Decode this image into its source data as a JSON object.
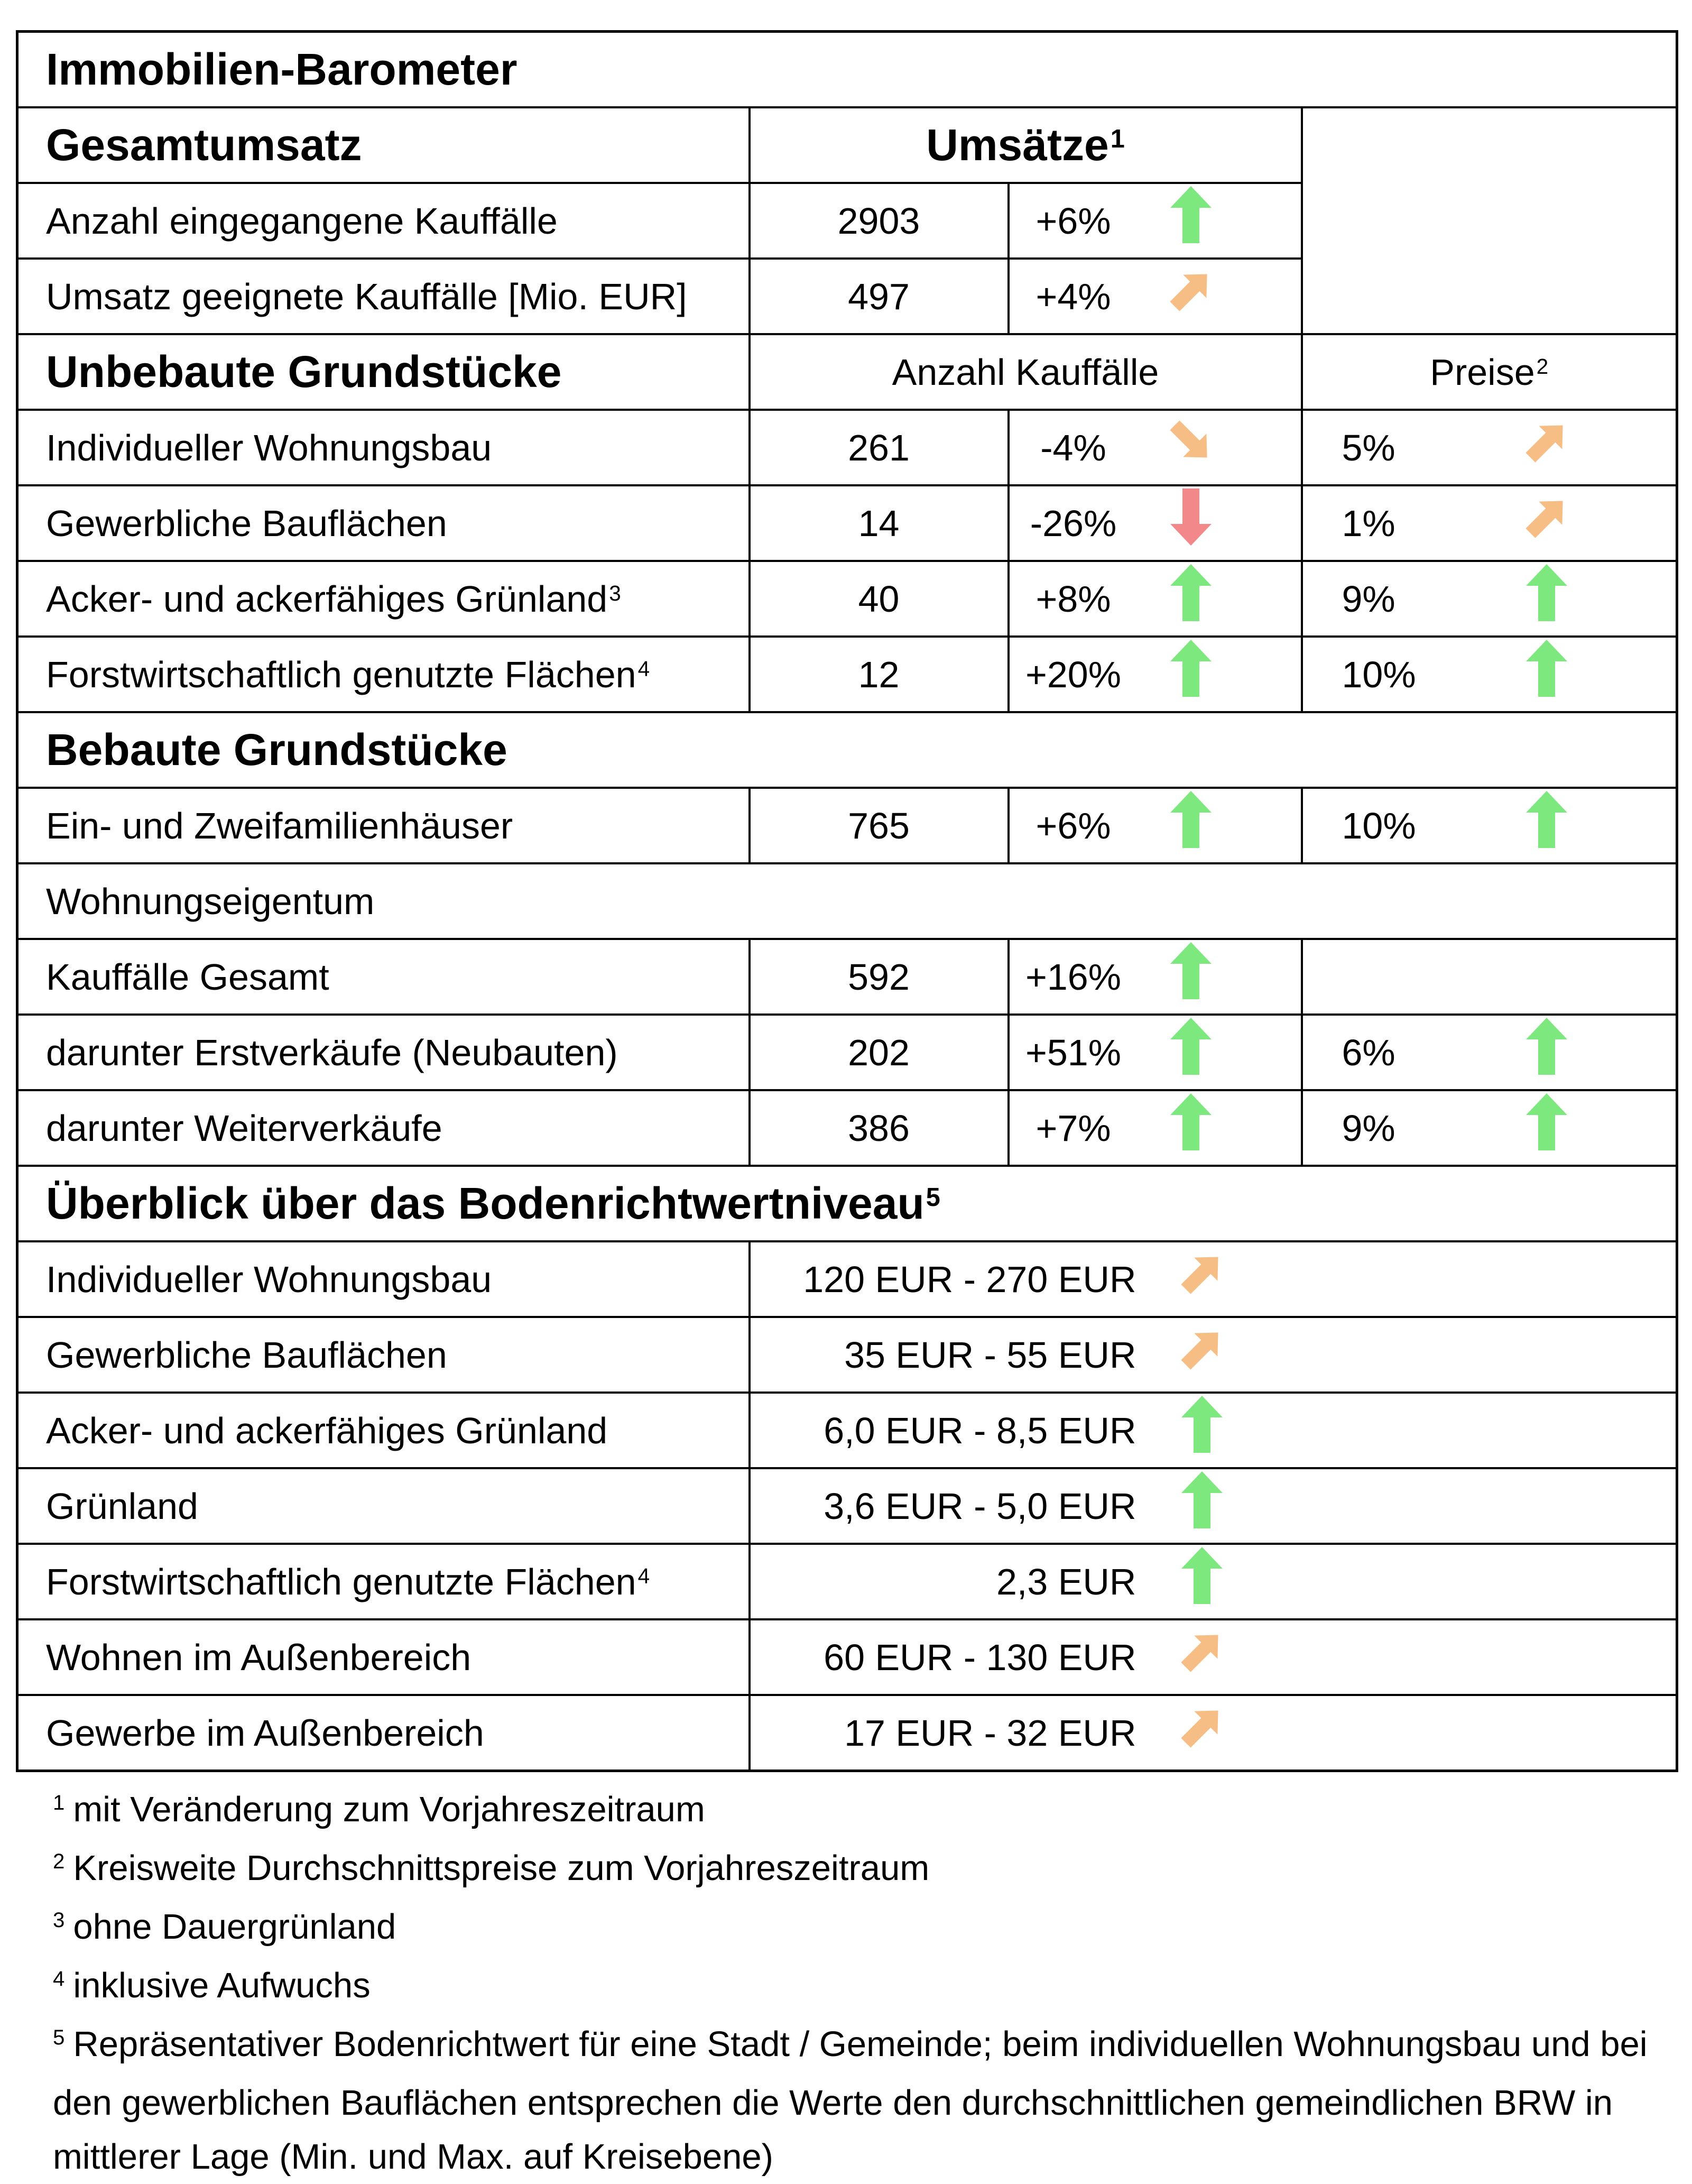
{
  "palette": {
    "green": "#7de87d",
    "orange": "#f6bd85",
    "red": "#f3888a",
    "border": "#000000",
    "background": "#ffffff"
  },
  "table": {
    "rows": [
      {
        "kind": "title",
        "label": "Immobilien-Barometer"
      },
      {
        "kind": "colheader2",
        "label": "Gesamtumsatz",
        "header": "Umsätze",
        "header_sup": "1"
      },
      {
        "kind": "data",
        "label": "Anzahl eingegangene Kauffälle",
        "num": "2903",
        "pct": "+6%",
        "trend": {
          "dir": "up",
          "color": "green"
        },
        "omit_price": true
      },
      {
        "kind": "data",
        "label": "Umsatz geeignete Kauffälle [Mio. EUR]",
        "num": "497",
        "pct": "+4%",
        "trend": {
          "dir": "ne",
          "color": "orange"
        },
        "omit_price": true
      },
      {
        "kind": "colheader5",
        "label": "Unbebaute Grundstücke",
        "header": "Anzahl Kauffälle",
        "header2": "Preise",
        "header2_sup": "2"
      },
      {
        "kind": "data",
        "label": "Individueller Wohnungsbau",
        "num": "261",
        "pct": "-4%",
        "trend": {
          "dir": "se",
          "color": "orange"
        },
        "price": {
          "pct": "5%",
          "trend": {
            "dir": "ne",
            "color": "orange"
          }
        }
      },
      {
        "kind": "data",
        "label": "Gewerbliche Bauflächen",
        "num": "14",
        "pct": "-26%",
        "trend": {
          "dir": "down",
          "color": "red"
        },
        "price": {
          "pct": "1%",
          "trend": {
            "dir": "ne",
            "color": "orange"
          }
        }
      },
      {
        "kind": "data",
        "label": "Acker- und ackerfähiges Grünland",
        "label_sup": "3",
        "num": "40",
        "pct": "+8%",
        "trend": {
          "dir": "up",
          "color": "green"
        },
        "price": {
          "pct": "9%",
          "trend": {
            "dir": "up",
            "color": "green"
          }
        }
      },
      {
        "kind": "data",
        "label": "Forstwirtschaftlich genutzte Flächen",
        "label_sup": "4",
        "num": "12",
        "pct": "+20%",
        "trend": {
          "dir": "up",
          "color": "green"
        },
        "price": {
          "pct": "10%",
          "trend": {
            "dir": "up",
            "color": "green"
          }
        }
      },
      {
        "kind": "section",
        "label": "Bebaute Grundstücke"
      },
      {
        "kind": "data",
        "label": "Ein- und Zweifamilienhäuser",
        "num": "765",
        "pct": "+6%",
        "trend": {
          "dir": "up",
          "color": "green"
        },
        "price": {
          "pct": "10%",
          "trend": {
            "dir": "up",
            "color": "green"
          }
        }
      },
      {
        "kind": "subsection",
        "label": "Wohnungseigentum"
      },
      {
        "kind": "data",
        "label": "Kauffälle Gesamt",
        "num": "592",
        "pct": "+16%",
        "trend": {
          "dir": "up",
          "color": "green"
        },
        "price": null
      },
      {
        "kind": "data",
        "label": "darunter Erstverkäufe (Neubauten)",
        "num": "202",
        "pct": "+51%",
        "trend": {
          "dir": "up",
          "color": "green"
        },
        "price": {
          "pct": "6%",
          "trend": {
            "dir": "up",
            "color": "green"
          }
        }
      },
      {
        "kind": "data",
        "label": "darunter Weiterverkäufe",
        "num": "386",
        "pct": "+7%",
        "trend": {
          "dir": "up",
          "color": "green"
        },
        "price": {
          "pct": "9%",
          "trend": {
            "dir": "up",
            "color": "green"
          }
        }
      },
      {
        "kind": "section",
        "label": "Überblick über das Bodenrichtwertniveau",
        "label_sup": "5"
      },
      {
        "kind": "range",
        "label": "Individueller Wohnungsbau",
        "value": "120 EUR - 270 EUR",
        "trend": {
          "dir": "ne",
          "color": "orange"
        }
      },
      {
        "kind": "range",
        "label": "Gewerbliche Bauflächen",
        "value": "35 EUR - 55 EUR",
        "trend": {
          "dir": "ne",
          "color": "orange"
        }
      },
      {
        "kind": "range",
        "label": "Acker- und ackerfähiges Grünland",
        "value": "6,0 EUR - 8,5 EUR",
        "trend": {
          "dir": "up",
          "color": "green"
        }
      },
      {
        "kind": "range",
        "label": "Grünland",
        "value": "3,6 EUR - 5,0 EUR",
        "trend": {
          "dir": "up",
          "color": "green"
        }
      },
      {
        "kind": "range",
        "label": "Forstwirtschaftlich genutzte Flächen",
        "label_sup": "4",
        "value": "2,3 EUR",
        "trend": {
          "dir": "up",
          "color": "green"
        }
      },
      {
        "kind": "range",
        "label": "Wohnen im Außenbereich",
        "value": "60 EUR - 130 EUR",
        "trend": {
          "dir": "ne",
          "color": "orange"
        }
      },
      {
        "kind": "range",
        "label": "Gewerbe im Außenbereich",
        "value": "17 EUR - 32 EUR",
        "trend": {
          "dir": "ne",
          "color": "orange"
        }
      }
    ]
  },
  "footnotes": [
    {
      "sup": "1",
      "lines": [
        "mit Veränderung zum Vorjahreszeitraum"
      ]
    },
    {
      "sup": "2",
      "lines": [
        "Kreisweite Durchschnittspreise zum Vorjahreszeitraum"
      ]
    },
    {
      "sup": "3",
      "lines": [
        "ohne Dauergrünland"
      ]
    },
    {
      "sup": "4",
      "lines": [
        "inklusive Aufwuchs"
      ]
    },
    {
      "sup": "5",
      "lines": [
        "Repräsentativer Bodenrichtwert für eine Stadt / Gemeinde; beim individuellen Wohnungsbau und bei",
        "den gewerblichen Bauflächen entsprechen die Werte den durchschnittlichen gemeindlichen BRW in",
        "mittlerer Lage (Min. und Max. auf Kreisebene)"
      ]
    }
  ]
}
